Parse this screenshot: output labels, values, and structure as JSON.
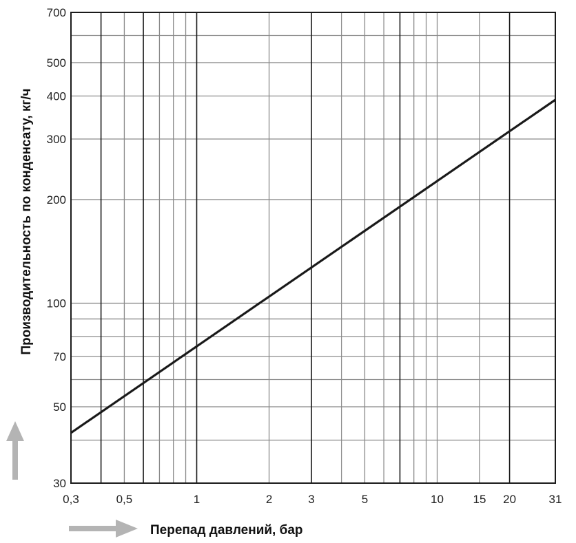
{
  "chart_data": {
    "type": "line",
    "title": "",
    "xlabel": "Перепад давлений, бар",
    "ylabel": "Производительность по конденсату, кг/ч",
    "x_scale": "log",
    "y_scale": "log",
    "xlim": [
      0.3,
      31
    ],
    "ylim": [
      30,
      700
    ],
    "grid": true,
    "x_ticks": [
      {
        "value": 0.3,
        "label": "0,3"
      },
      {
        "value": 0.5,
        "label": "0,5"
      },
      {
        "value": 1,
        "label": "1"
      },
      {
        "value": 2,
        "label": "2"
      },
      {
        "value": 3,
        "label": "3"
      },
      {
        "value": 5,
        "label": "5"
      },
      {
        "value": 10,
        "label": "10"
      },
      {
        "value": 15,
        "label": "15"
      },
      {
        "value": 20,
        "label": "20"
      },
      {
        "value": 31,
        "label": "31"
      }
    ],
    "y_ticks": [
      {
        "value": 30,
        "label": "30"
      },
      {
        "value": 50,
        "label": "50"
      },
      {
        "value": 70,
        "label": "70"
      },
      {
        "value": 100,
        "label": "100"
      },
      {
        "value": 200,
        "label": "200"
      },
      {
        "value": 300,
        "label": "300"
      },
      {
        "value": 400,
        "label": "400"
      },
      {
        "value": 500,
        "label": "500"
      },
      {
        "value": 700,
        "label": "700"
      }
    ],
    "x_grid_dark": [
      0.4,
      0.6,
      1,
      3,
      7,
      20
    ],
    "x_grid_light": [
      0.5,
      0.7,
      0.8,
      0.9,
      2,
      4,
      5,
      6,
      8,
      9,
      10,
      15
    ],
    "y_grid": [
      40,
      50,
      60,
      70,
      80,
      90,
      100,
      200,
      300,
      400,
      500,
      600
    ],
    "series": [
      {
        "points": [
          {
            "x": 0.3,
            "y": 42
          },
          {
            "x": 31,
            "y": 390
          }
        ],
        "color": "#1a1a1a"
      }
    ],
    "arrow_color": "#b4b4b4"
  }
}
